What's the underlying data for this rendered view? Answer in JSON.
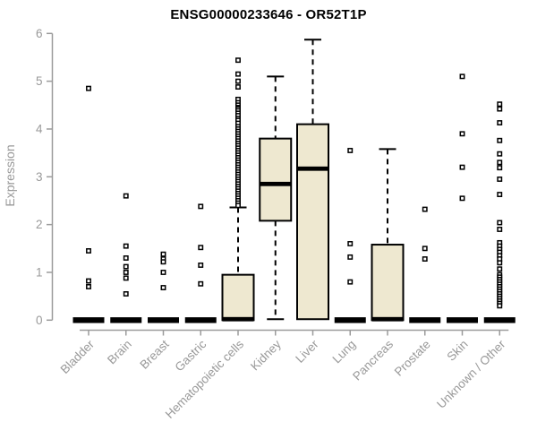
{
  "chart": {
    "title": "ENSG00000233646 - OR52T1P",
    "y_axis_label": "Expression"
  },
  "chart_data": {
    "type": "boxplot",
    "title": "ENSG00000233646 - OR52T1P",
    "xlabel": "",
    "ylabel": "Expression",
    "ylim": [
      0,
      6
    ],
    "yticks": [
      0,
      1,
      2,
      3,
      4,
      5,
      6
    ],
    "grid": false,
    "legend": false,
    "box_fill_color": "#EEE8D0",
    "box_border_color": "#000000",
    "axis_color": "#9B9B9B",
    "tick_label_color": "#999999",
    "categories": [
      "Bladder",
      "Brain",
      "Breast",
      "Gastric",
      "Hematopoietic cells",
      "Kidney",
      "Liver",
      "Lung",
      "Pancreas",
      "Prostate",
      "Skin",
      "Unknown / Other"
    ],
    "series": [
      {
        "name": "Bladder",
        "whisker_low": 0,
        "q1": 0,
        "median": 0,
        "q3": 0,
        "whisker_high": 0,
        "outliers": [
          4.85,
          1.45,
          0.82,
          0.7
        ]
      },
      {
        "name": "Brain",
        "whisker_low": 0,
        "q1": 0,
        "median": 0,
        "q3": 0,
        "whisker_high": 0,
        "outliers": [
          2.6,
          1.55,
          1.3,
          1.12,
          1.0,
          0.88,
          0.55
        ]
      },
      {
        "name": "Breast",
        "whisker_low": 0,
        "q1": 0,
        "median": 0,
        "q3": 0,
        "whisker_high": 0,
        "outliers": [
          1.38,
          1.28,
          1.22,
          1.0,
          0.68
        ]
      },
      {
        "name": "Gastric",
        "whisker_low": 0,
        "q1": 0,
        "median": 0,
        "q3": 0,
        "whisker_high": 0,
        "outliers": [
          2.38,
          1.52,
          1.15,
          0.76
        ]
      },
      {
        "name": "Hematopoietic cells",
        "whisker_low": 0,
        "q1": 0,
        "median": 0.02,
        "q3": 0.95,
        "whisker_high": 2.36,
        "outliers": [
          5.44,
          5.15,
          5.0,
          4.88,
          4.62,
          4.55,
          4.5,
          4.45,
          4.42,
          4.38,
          4.33,
          4.28,
          4.22,
          4.18,
          4.12,
          4.05,
          4.0,
          3.95,
          3.9,
          3.85,
          3.8,
          3.75,
          3.7,
          3.65,
          3.6,
          3.55,
          3.5,
          3.45,
          3.4,
          3.35,
          3.3,
          3.25,
          3.2,
          3.15,
          3.1,
          3.05,
          3.0,
          2.95,
          2.9,
          2.85,
          2.8,
          2.75,
          2.7,
          2.65,
          2.6,
          2.55,
          2.5,
          2.45,
          2.4
        ]
      },
      {
        "name": "Kidney",
        "whisker_low": 0.02,
        "q1": 2.08,
        "median": 2.85,
        "q3": 3.8,
        "whisker_high": 5.1,
        "outliers": []
      },
      {
        "name": "Liver",
        "whisker_low": 0.02,
        "q1": 0.02,
        "median": 3.17,
        "q3": 4.1,
        "whisker_high": 5.87,
        "outliers": []
      },
      {
        "name": "Lung",
        "whisker_low": 0,
        "q1": 0,
        "median": 0,
        "q3": 0,
        "whisker_high": 0,
        "outliers": [
          3.55,
          1.6,
          1.32,
          0.8
        ]
      },
      {
        "name": "Pancreas",
        "whisker_low": 0,
        "q1": 0,
        "median": 0.02,
        "q3": 1.58,
        "whisker_high": 3.58,
        "outliers": []
      },
      {
        "name": "Prostate",
        "whisker_low": 0,
        "q1": 0,
        "median": 0,
        "q3": 0,
        "whisker_high": 0,
        "outliers": [
          2.32,
          1.5,
          1.28
        ]
      },
      {
        "name": "Skin",
        "whisker_low": 0,
        "q1": 0,
        "median": 0,
        "q3": 0,
        "whisker_high": 0,
        "outliers": [
          5.1,
          3.9,
          3.2,
          2.55
        ]
      },
      {
        "name": "Unknown / Other",
        "whisker_low": 0,
        "q1": 0,
        "median": 0,
        "q3": 0,
        "whisker_high": 0,
        "outliers": [
          4.52,
          4.42,
          4.13,
          3.76,
          3.48,
          3.3,
          3.19,
          2.95,
          2.63,
          2.04,
          1.9,
          1.62,
          1.55,
          1.48,
          1.42,
          1.35,
          1.28,
          1.2,
          1.07,
          0.95,
          0.9,
          0.85,
          0.8,
          0.75,
          0.7,
          0.65,
          0.6,
          0.55,
          0.5,
          0.45,
          0.4,
          0.35,
          0.3
        ]
      }
    ]
  }
}
